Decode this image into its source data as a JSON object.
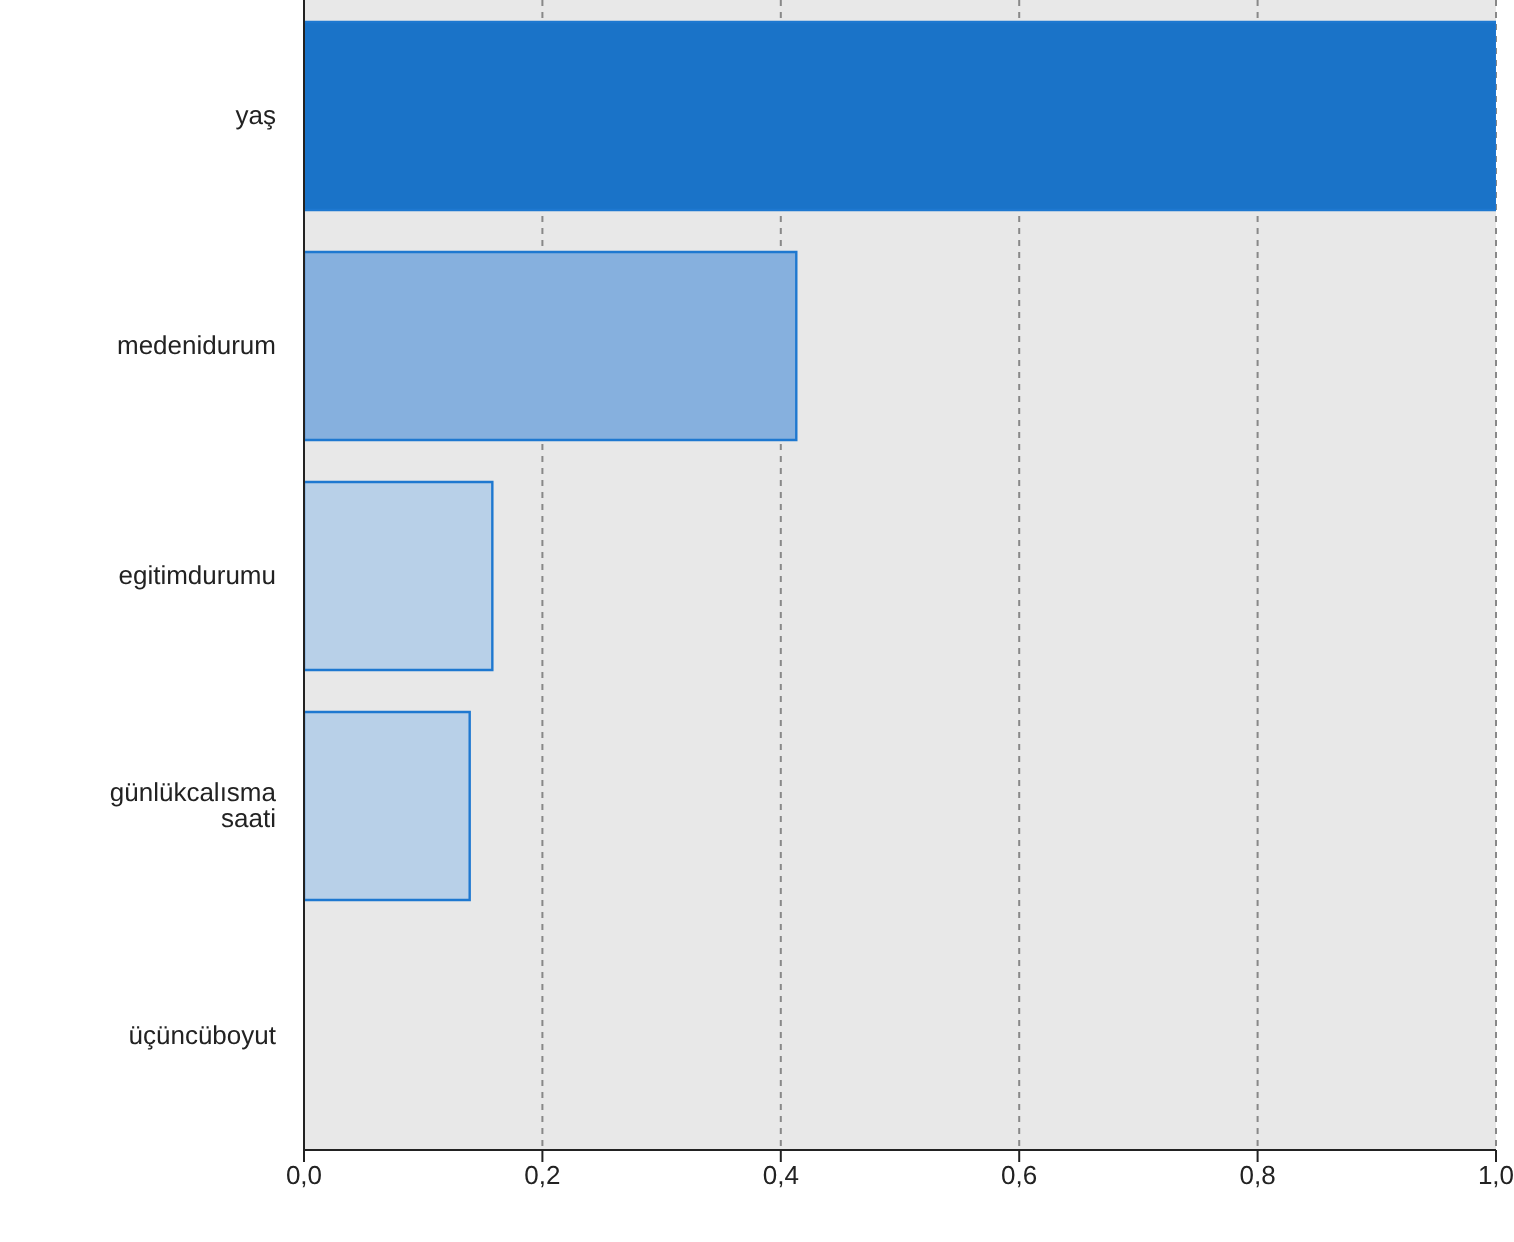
{
  "chart_data": {
    "type": "bar",
    "orientation": "horizontal",
    "categories": [
      "yaş",
      "medenidurum",
      "egitimdurumu",
      "günlükcalısma saati",
      "üçüncüboyut"
    ],
    "values": [
      1.0,
      0.413,
      0.158,
      0.139,
      0
    ],
    "colors": [
      "#1a73c8",
      "#86b0de",
      "#b8d0e8",
      "#b8d0e8",
      "#b8d0e8"
    ],
    "xlim": [
      0,
      1
    ],
    "xticks": [
      {
        "value": 0,
        "label": "0,0"
      },
      {
        "value": 0.2,
        "label": "0,2"
      },
      {
        "value": 0.4,
        "label": "0,4"
      },
      {
        "value": 0.6,
        "label": "0,6"
      },
      {
        "value": 0.8,
        "label": "0,8"
      },
      {
        "value": 1,
        "label": "1,0"
      }
    ],
    "grid": "x",
    "legend": false
  }
}
